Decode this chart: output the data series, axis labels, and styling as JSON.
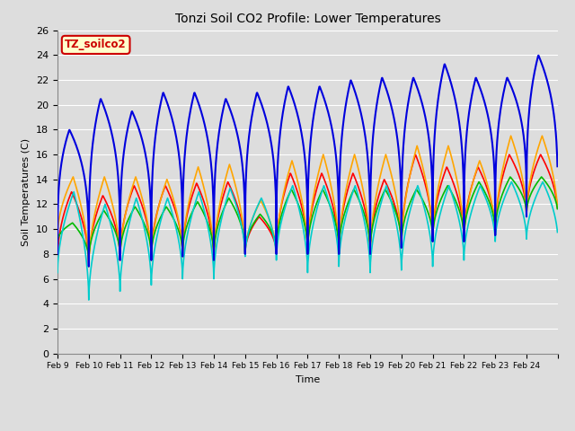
{
  "title": "Tonzi Soil CO2 Profile: Lower Temperatures",
  "xlabel": "Time",
  "ylabel": "Soil Temperatures (C)",
  "ylim": [
    0,
    26
  ],
  "yticks": [
    0,
    2,
    4,
    6,
    8,
    10,
    12,
    14,
    16,
    18,
    20,
    22,
    24,
    26
  ],
  "xtick_labels": [
    "Feb 9",
    "Feb 10",
    "Feb 11",
    "Feb 12",
    "Feb 13",
    "Feb 14",
    "Feb 15",
    "Feb 16",
    "Feb 17",
    "Feb 18",
    "Feb 19",
    "Feb 20",
    "Feb 21",
    "Feb 22",
    "Feb 23",
    "Feb 24"
  ],
  "series": {
    "Open -8cm": {
      "color": "#ff0000",
      "linewidth": 1.2
    },
    "Tree -8cm": {
      "color": "#ffa500",
      "linewidth": 1.2
    },
    "Open -16cm": {
      "color": "#00bb00",
      "linewidth": 1.2
    },
    "Tree -16cm": {
      "color": "#0000dd",
      "linewidth": 1.5
    },
    "Tree2 -8cm": {
      "color": "#00cccc",
      "linewidth": 1.2
    }
  },
  "annotation_text": "TZ_soilco2",
  "annotation_color": "#cc0000",
  "annotation_bg": "#ffffcc",
  "background_color": "#dddddd",
  "plot_bg": "#dddddd",
  "grid_color": "#ffffff",
  "n_days": 16,
  "peak_phase": 0.45,
  "mins_open8": [
    7.5,
    7.0,
    7.5,
    7.5,
    7.8,
    7.5,
    8.0,
    8.0,
    8.0,
    8.0,
    8.0,
    8.5,
    9.0,
    9.0,
    9.5,
    11.0
  ],
  "mins_tree8": [
    9.5,
    7.0,
    7.5,
    7.5,
    7.8,
    7.5,
    8.0,
    8.0,
    8.0,
    8.0,
    8.0,
    8.5,
    9.0,
    9.0,
    9.5,
    11.0
  ],
  "mins_open16": [
    9.0,
    7.5,
    7.8,
    7.8,
    8.0,
    7.8,
    8.2,
    8.2,
    8.2,
    8.2,
    8.2,
    8.7,
    9.2,
    9.2,
    9.7,
    11.2
  ],
  "mins_tree16": [
    8.0,
    7.0,
    7.5,
    7.5,
    7.8,
    7.5,
    8.0,
    8.0,
    8.0,
    8.0,
    8.0,
    8.5,
    9.0,
    9.0,
    9.5,
    11.0
  ],
  "mins_tree28": [
    6.5,
    4.3,
    5.0,
    5.5,
    6.0,
    6.0,
    7.8,
    7.5,
    6.5,
    7.0,
    6.5,
    6.7,
    7.0,
    7.5,
    9.0,
    9.2
  ],
  "peaks_open8": [
    13.0,
    12.7,
    13.5,
    13.5,
    13.7,
    13.8,
    11.0,
    14.5,
    14.5,
    14.5,
    14.0,
    16.0,
    15.0,
    15.0,
    16.0,
    16.0
  ],
  "peaks_tree8": [
    14.2,
    14.2,
    14.2,
    14.0,
    15.0,
    15.2,
    12.3,
    15.5,
    16.0,
    16.0,
    16.0,
    16.7,
    16.7,
    15.5,
    17.5,
    17.5
  ],
  "peaks_open16": [
    10.5,
    11.5,
    11.8,
    11.8,
    12.2,
    12.5,
    11.2,
    13.2,
    13.2,
    13.2,
    13.2,
    13.2,
    13.5,
    13.8,
    14.2,
    14.2
  ],
  "peaks_tree16": [
    18.0,
    20.5,
    19.5,
    21.0,
    21.0,
    20.5,
    21.0,
    21.5,
    21.5,
    22.0,
    22.2,
    22.2,
    23.3,
    22.2,
    22.2,
    24.0
  ],
  "peaks_tree28": [
    13.0,
    12.0,
    12.5,
    12.5,
    13.0,
    13.3,
    12.5,
    13.5,
    13.5,
    13.5,
    13.5,
    13.5,
    13.5,
    13.5,
    13.8,
    13.8
  ]
}
